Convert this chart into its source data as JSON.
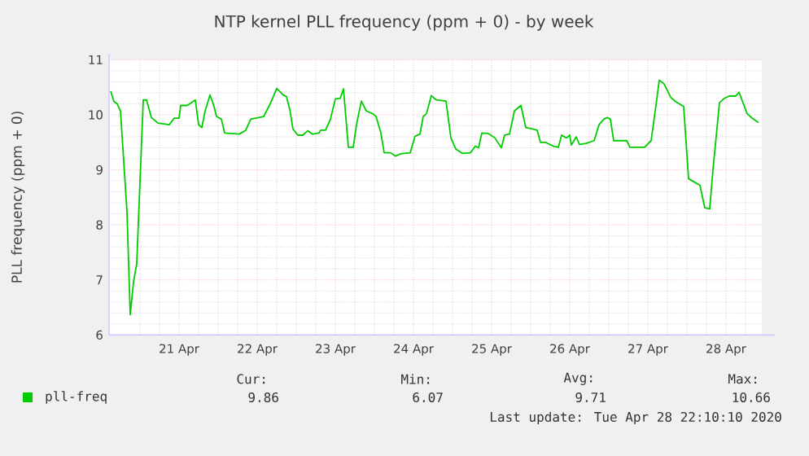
{
  "chart_data": {
    "type": "line",
    "title": "NTP kernel PLL frequency (ppm + 0) - by week",
    "ylabel": "PLL frequency (ppm + 0)",
    "xlim": [
      "2020-04-20T14:30",
      "2020-04-28T23:00"
    ],
    "ylim": [
      6,
      11
    ],
    "yticks": [
      6,
      7,
      8,
      9,
      10,
      11
    ],
    "xticks": [
      {
        "value": "2020-04-21T12:00",
        "label": "21 Apr"
      },
      {
        "value": "2020-04-22T12:00",
        "label": "22 Apr"
      },
      {
        "value": "2020-04-23T12:00",
        "label": "23 Apr"
      },
      {
        "value": "2020-04-24T12:00",
        "label": "24 Apr"
      },
      {
        "value": "2020-04-25T12:00",
        "label": "25 Apr"
      },
      {
        "value": "2020-04-26T12:00",
        "label": "26 Apr"
      },
      {
        "value": "2020-04-27T12:00",
        "label": "27 Apr"
      },
      {
        "value": "2020-04-28T12:00",
        "label": "28 Apr"
      }
    ],
    "grid": true,
    "legend": "bottom",
    "annotations": [
      "Cur:",
      "9.86",
      "Min:",
      "6.07",
      "Avg:",
      "9.71",
      "Max:",
      "10.66",
      "Last update: Tue Apr 28 22:10:10 2020"
    ],
    "series": [
      {
        "name": "pll-freq",
        "color": "#00cc00",
        "x": [
          "2020-04-20T15:00",
          "2020-04-20T16:00",
          "2020-04-20T17:00",
          "2020-04-20T18:00",
          "2020-04-20T20:00",
          "2020-04-20T21:00",
          "2020-04-20T22:00",
          "2020-04-20T23:00",
          "2020-04-21T01:00",
          "2020-04-21T02:00",
          "2020-04-21T03:30",
          "2020-04-21T05:30",
          "2020-04-21T09:00",
          "2020-04-21T10:30",
          "2020-04-21T12:00",
          "2020-04-21T12:30",
          "2020-04-21T14:30",
          "2020-04-21T17:00",
          "2020-04-21T18:00",
          "2020-04-21T19:00",
          "2020-04-21T20:00",
          "2020-04-21T21:30",
          "2020-04-21T22:30",
          "2020-04-21T23:30",
          "2020-04-22T01:00",
          "2020-04-22T02:00",
          "2020-04-22T06:30",
          "2020-04-22T08:30",
          "2020-04-22T10:00",
          "2020-04-22T14:00",
          "2020-04-22T16:00",
          "2020-04-22T18:00",
          "2020-04-22T20:00",
          "2020-04-22T21:00",
          "2020-04-22T22:00",
          "2020-04-22T23:00",
          "2020-04-23T00:30",
          "2020-04-23T02:00",
          "2020-04-23T03:30",
          "2020-04-23T05:00",
          "2020-04-23T07:00",
          "2020-04-23T07:30",
          "2020-04-23T09:00",
          "2020-04-23T10:30",
          "2020-04-23T12:00",
          "2020-04-23T13:30",
          "2020-04-23T14:30",
          "2020-04-23T16:00",
          "2020-04-23T17:30",
          "2020-04-23T18:30",
          "2020-04-23T20:00",
          "2020-04-23T21:30",
          "2020-04-23T23:30",
          "2020-04-24T00:30",
          "2020-04-24T02:00",
          "2020-04-24T03:00",
          "2020-04-24T05:00",
          "2020-04-24T06:30",
          "2020-04-24T08:00",
          "2020-04-24T11:00",
          "2020-04-24T12:30",
          "2020-04-24T14:00",
          "2020-04-24T15:00",
          "2020-04-24T16:00",
          "2020-04-24T17:30",
          "2020-04-24T19:00",
          "2020-04-24T22:00",
          "2020-04-24T23:30",
          "2020-04-25T01:00",
          "2020-04-25T03:00",
          "2020-04-25T05:30",
          "2020-04-25T07:00",
          "2020-04-25T08:00",
          "2020-04-25T09:00",
          "2020-04-25T11:00",
          "2020-04-25T13:00",
          "2020-04-25T15:00",
          "2020-04-25T16:00",
          "2020-04-25T17:30",
          "2020-04-25T19:00",
          "2020-04-25T21:00",
          "2020-04-25T22:30",
          "2020-04-26T00:00",
          "2020-04-26T02:00",
          "2020-04-26T03:00",
          "2020-04-26T04:30",
          "2020-04-26T07:00",
          "2020-04-26T08:30",
          "2020-04-26T09:30",
          "2020-04-26T11:00",
          "2020-04-26T12:00",
          "2020-04-26T12:30",
          "2020-04-26T14:00",
          "2020-04-26T15:00",
          "2020-04-26T17:00",
          "2020-04-26T19:30",
          "2020-04-26T21:00",
          "2020-04-26T22:30",
          "2020-04-26T23:30",
          "2020-04-27T00:30",
          "2020-04-27T01:30",
          "2020-04-27T05:30",
          "2020-04-27T06:30",
          "2020-04-27T11:00",
          "2020-04-27T13:00",
          "2020-04-27T14:30",
          "2020-04-27T15:30",
          "2020-04-27T17:00",
          "2020-04-27T19:00",
          "2020-04-27T20:30",
          "2020-04-27T23:00",
          "2020-04-28T00:30",
          "2020-04-28T02:30",
          "2020-04-28T04:00",
          "2020-04-28T05:30",
          "2020-04-28T07:00",
          "2020-04-28T08:00",
          "2020-04-28T10:00",
          "2020-04-28T11:30",
          "2020-04-28T13:00",
          "2020-04-28T15:00",
          "2020-04-28T16:00",
          "2020-04-28T18:30",
          "2020-04-28T20:00",
          "2020-04-28T22:00"
        ],
        "values": [
          10.43,
          10.24,
          10.2,
          10.07,
          8.24,
          6.37,
          6.96,
          7.3,
          10.27,
          10.27,
          9.95,
          9.85,
          9.82,
          9.94,
          9.94,
          10.17,
          10.17,
          10.27,
          9.82,
          9.77,
          10.07,
          10.36,
          10.2,
          9.97,
          9.92,
          9.67,
          9.65,
          9.72,
          9.92,
          9.97,
          10.2,
          10.48,
          10.36,
          10.33,
          10.1,
          9.74,
          9.63,
          9.63,
          9.71,
          9.65,
          9.67,
          9.72,
          9.72,
          9.92,
          10.29,
          10.3,
          10.47,
          9.41,
          9.41,
          9.82,
          10.25,
          10.07,
          10.02,
          9.97,
          9.67,
          9.31,
          9.31,
          9.25,
          9.29,
          9.31,
          9.61,
          9.65,
          9.97,
          10.02,
          10.35,
          10.27,
          10.25,
          9.58,
          9.38,
          9.3,
          9.31,
          9.43,
          9.4,
          9.67,
          9.66,
          9.58,
          9.4,
          9.63,
          9.65,
          10.07,
          10.17,
          9.77,
          9.75,
          9.72,
          9.5,
          9.5,
          9.43,
          9.41,
          9.63,
          9.58,
          9.63,
          9.45,
          9.6,
          9.46,
          9.48,
          9.53,
          9.82,
          9.92,
          9.95,
          9.92,
          9.53,
          9.53,
          9.41,
          9.41,
          9.53,
          10.17,
          10.63,
          10.56,
          10.32,
          10.24,
          10.15,
          8.84,
          8.77,
          8.72,
          8.31,
          8.29,
          9.0,
          10.22,
          10.3,
          10.34,
          10.34,
          10.41,
          10.02,
          9.94,
          9.86
        ]
      }
    ]
  }
}
